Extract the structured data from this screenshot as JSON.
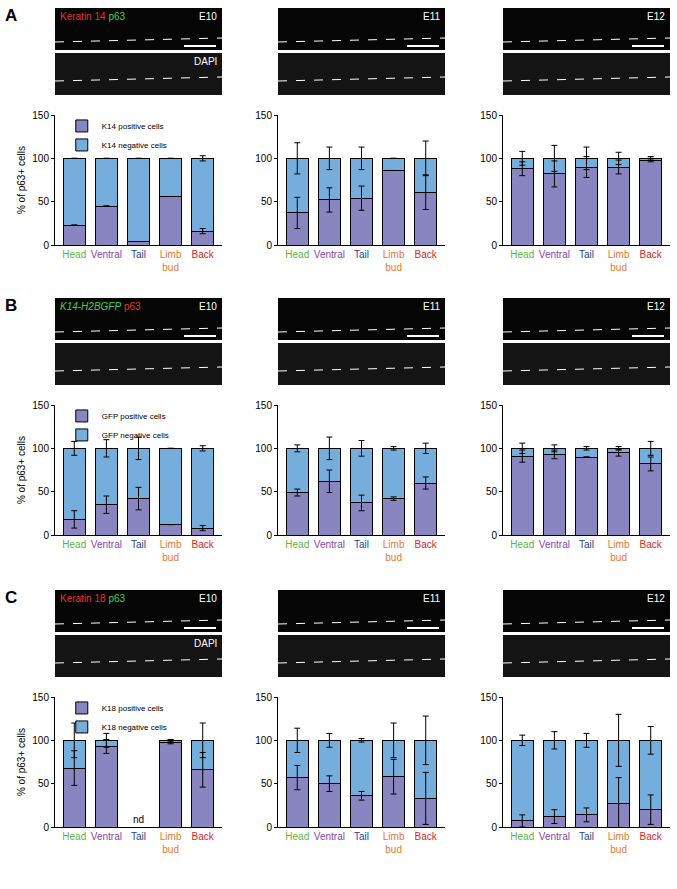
{
  "figure": {
    "panels": [
      {
        "label": "A",
        "markers": [
          {
            "text": "Keratin 14",
            "color": "#e8312a"
          },
          {
            "text": "p63",
            "color": "#3fd14a"
          }
        ],
        "stages": [
          "E10",
          "E11",
          "E12"
        ],
        "counterstain": "DAPI"
      },
      {
        "label": "B",
        "markers": [
          {
            "text": "K14-H2BGFP",
            "color": "#3fd14a",
            "font_style": "italic"
          },
          {
            "text": "p63",
            "color": "#e8312a"
          }
        ],
        "stages": [
          "E10",
          "E11",
          "E12"
        ]
      },
      {
        "label": "C",
        "markers": [
          {
            "text": "Keratin 18",
            "color": "#e8312a"
          },
          {
            "text": "p63",
            "color": "#3fd14a"
          }
        ],
        "stages": [
          "E10",
          "E11",
          "E12"
        ],
        "counterstain": "DAPI"
      }
    ]
  },
  "chart_data": [
    {
      "type": "bar",
      "stacked": true,
      "panel": "A",
      "stage": "E10",
      "ylabel": "% of p63+ cells",
      "legend": "upper left",
      "categories": [
        "Head",
        "Ventral",
        "Tail",
        "Limb bud",
        "Back"
      ],
      "category_colors": [
        "#5cb63c",
        "#8b44ac",
        "#2a3f8f",
        "#e8772e",
        "#d62828"
      ],
      "ylim": [
        0,
        150
      ],
      "yticks": [
        0,
        50,
        100,
        150
      ],
      "grid": false,
      "series": [
        {
          "name": "K14 positive cells",
          "color": "#8985c0",
          "values": [
            23,
            45,
            4,
            56,
            16
          ],
          "errors": [
            0,
            0,
            0,
            0,
            3
          ]
        },
        {
          "name": "K14 negative cells",
          "color": "#75aedc",
          "values": [
            77,
            55,
            96,
            44,
            84
          ],
          "errors": [
            0,
            0,
            0,
            0,
            3
          ]
        }
      ]
    },
    {
      "type": "bar",
      "stacked": true,
      "panel": "A",
      "stage": "E11",
      "categories": [
        "Head",
        "Ventral",
        "Tail",
        "Limb bud",
        "Back"
      ],
      "category_colors": [
        "#5cb63c",
        "#8b44ac",
        "#2a3f8f",
        "#e8772e",
        "#d62828"
      ],
      "ylim": [
        0,
        150
      ],
      "yticks": [
        0,
        50,
        100,
        150
      ],
      "grid": false,
      "series": [
        {
          "name": "K14 positive cells",
          "color": "#8985c0",
          "values": [
            37,
            52,
            54,
            86,
            61
          ],
          "errors": [
            18,
            14,
            14,
            0,
            20
          ]
        },
        {
          "name": "K14 negative cells",
          "color": "#75aedc",
          "values": [
            63,
            48,
            46,
            14,
            39
          ],
          "errors": [
            18,
            13,
            13,
            0,
            20
          ]
        }
      ]
    },
    {
      "type": "bar",
      "stacked": true,
      "panel": "A",
      "stage": "E12",
      "categories": [
        "Head",
        "Ventral",
        "Tail",
        "Limb bud",
        "Back"
      ],
      "category_colors": [
        "#5cb63c",
        "#8b44ac",
        "#2a3f8f",
        "#e8772e",
        "#d62828"
      ],
      "ylim": [
        0,
        150
      ],
      "yticks": [
        0,
        50,
        100,
        150
      ],
      "grid": false,
      "series": [
        {
          "name": "K14 positive cells",
          "color": "#8985c0",
          "values": [
            88,
            82,
            90,
            90,
            98
          ],
          "errors": [
            8,
            15,
            12,
            8,
            2
          ]
        },
        {
          "name": "K14 negative cells",
          "color": "#75aedc",
          "values": [
            12,
            18,
            10,
            10,
            2
          ],
          "errors": [
            8,
            15,
            13,
            7,
            2
          ]
        }
      ]
    },
    {
      "type": "bar",
      "stacked": true,
      "panel": "B",
      "stage": "E10",
      "ylabel": "% of p63+ cells",
      "legend": "upper left",
      "categories": [
        "Head",
        "Ventral",
        "Tail",
        "Limb bud",
        "Back"
      ],
      "category_colors": [
        "#5cb63c",
        "#8b44ac",
        "#2a3f8f",
        "#e8772e",
        "#d62828"
      ],
      "ylim": [
        0,
        150
      ],
      "yticks": [
        0,
        50,
        100,
        150
      ],
      "grid": false,
      "series": [
        {
          "name": "GFP positive cells",
          "color": "#8985c0",
          "values": [
            18,
            35,
            42,
            12,
            8
          ],
          "errors": [
            10,
            10,
            13,
            0,
            3
          ]
        },
        {
          "name": "GFP negative cells",
          "color": "#75aedc",
          "values": [
            82,
            65,
            58,
            88,
            92
          ],
          "errors": [
            8,
            10,
            13,
            0,
            3
          ]
        }
      ]
    },
    {
      "type": "bar",
      "stacked": true,
      "panel": "B",
      "stage": "E11",
      "categories": [
        "Head",
        "Ventral",
        "Tail",
        "Limb bud",
        "Back"
      ],
      "category_colors": [
        "#5cb63c",
        "#8b44ac",
        "#2a3f8f",
        "#e8772e",
        "#d62828"
      ],
      "ylim": [
        0,
        150
      ],
      "yticks": [
        0,
        50,
        100,
        150
      ],
      "grid": false,
      "series": [
        {
          "name": "GFP positive cells",
          "color": "#8985c0",
          "values": [
            49,
            62,
            37,
            42,
            60
          ],
          "errors": [
            4,
            13,
            9,
            2,
            7
          ]
        },
        {
          "name": "GFP negative cells",
          "color": "#75aedc",
          "values": [
            51,
            38,
            63,
            58,
            40
          ],
          "errors": [
            4,
            13,
            9,
            2,
            6
          ]
        }
      ]
    },
    {
      "type": "bar",
      "stacked": true,
      "panel": "B",
      "stage": "E12",
      "categories": [
        "Head",
        "Ventral",
        "Tail",
        "Limb bud",
        "Back"
      ],
      "category_colors": [
        "#5cb63c",
        "#8b44ac",
        "#2a3f8f",
        "#e8772e",
        "#d62828"
      ],
      "ylim": [
        0,
        150
      ],
      "yticks": [
        0,
        50,
        100,
        150
      ],
      "grid": false,
      "series": [
        {
          "name": "GFP positive cells",
          "color": "#8985c0",
          "values": [
            91,
            93,
            90,
            95,
            82
          ],
          "errors": [
            7,
            5,
            0,
            4,
            8
          ]
        },
        {
          "name": "GFP negative cells",
          "color": "#75aedc",
          "values": [
            9,
            7,
            10,
            5,
            18
          ],
          "errors": [
            6,
            4,
            2,
            2,
            8
          ]
        }
      ]
    },
    {
      "type": "bar",
      "stacked": true,
      "panel": "C",
      "stage": "E10",
      "ylabel": "% of p63+ cells",
      "legend": "upper left",
      "categories": [
        "Head",
        "Ventral",
        "Tail",
        "Limb bud",
        "Back"
      ],
      "category_colors": [
        "#5cb63c",
        "#8b44ac",
        "#2a3f8f",
        "#e8772e",
        "#d62828"
      ],
      "ylim": [
        0,
        150
      ],
      "yticks": [
        0,
        50,
        100,
        150
      ],
      "grid": false,
      "annotations": [
        {
          "category": "Tail",
          "text": "nd"
        }
      ],
      "series": [
        {
          "name": "K18 positive cells",
          "color": "#8985c0",
          "values": [
            68,
            93,
            null,
            98,
            66
          ],
          "errors": [
            20,
            8,
            null,
            2,
            20
          ]
        },
        {
          "name": "K18 negative cells",
          "color": "#75aedc",
          "values": [
            32,
            7,
            null,
            2,
            34
          ],
          "errors": [
            20,
            8,
            null,
            1,
            20
          ]
        }
      ]
    },
    {
      "type": "bar",
      "stacked": true,
      "panel": "C",
      "stage": "E11",
      "categories": [
        "Head",
        "Ventral",
        "Tail",
        "Limb bud",
        "Back"
      ],
      "category_colors": [
        "#5cb63c",
        "#8b44ac",
        "#2a3f8f",
        "#e8772e",
        "#d62828"
      ],
      "ylim": [
        0,
        150
      ],
      "yticks": [
        0,
        50,
        100,
        150
      ],
      "grid": false,
      "series": [
        {
          "name": "K18 positive cells",
          "color": "#8985c0",
          "values": [
            57,
            50,
            36,
            58,
            33
          ],
          "errors": [
            14,
            9,
            5,
            20,
            30
          ]
        },
        {
          "name": "K18 negative cells",
          "color": "#75aedc",
          "values": [
            43,
            50,
            64,
            42,
            67
          ],
          "errors": [
            14,
            8,
            2,
            20,
            28
          ]
        }
      ]
    },
    {
      "type": "bar",
      "stacked": true,
      "panel": "C",
      "stage": "E12",
      "categories": [
        "Head",
        "Ventral",
        "Tail",
        "Limb bud",
        "Back"
      ],
      "category_colors": [
        "#5cb63c",
        "#8b44ac",
        "#2a3f8f",
        "#e8772e",
        "#d62828"
      ],
      "ylim": [
        0,
        150
      ],
      "yticks": [
        0,
        50,
        100,
        150
      ],
      "grid": false,
      "series": [
        {
          "name": "K18 positive cells",
          "color": "#8985c0",
          "values": [
            7,
            12,
            14,
            27,
            20
          ],
          "errors": [
            7,
            8,
            8,
            30,
            17
          ]
        },
        {
          "name": "K18 negative cells",
          "color": "#75aedc",
          "values": [
            93,
            88,
            86,
            73,
            80
          ],
          "errors": [
            6,
            10,
            8,
            30,
            16
          ]
        }
      ]
    }
  ]
}
